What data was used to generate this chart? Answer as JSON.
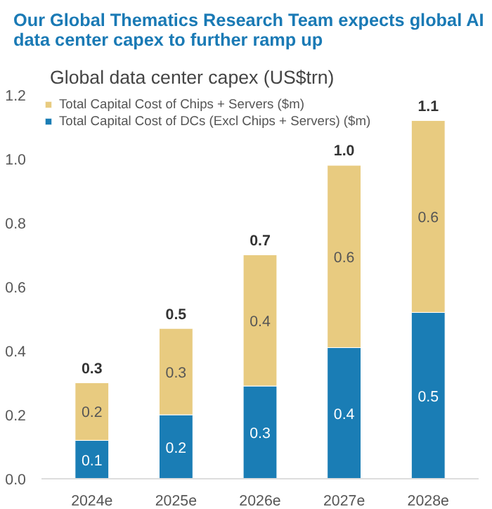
{
  "chart_data": {
    "type": "bar",
    "stacked": true,
    "title": "Our Global Thematics Research Team expects global AI data center capex to further ramp up",
    "subtitle": "Global data center capex (US$trn)",
    "categories": [
      "2024e",
      "2025e",
      "2026e",
      "2027e",
      "2028e"
    ],
    "series": [
      {
        "name": "Total Capital Cost of DCs (Excl Chips + Servers) ($m)",
        "color": "#1a7db5",
        "values": [
          0.12,
          0.2,
          0.29,
          0.41,
          0.52
        ],
        "value_labels": [
          "0.1",
          "0.2",
          "0.3",
          "0.4",
          "0.5"
        ]
      },
      {
        "name": "Total Capital Cost of Chips + Servers ($m)",
        "color": "#e8cb80",
        "values": [
          0.18,
          0.27,
          0.41,
          0.57,
          0.6
        ],
        "value_labels": [
          "0.2",
          "0.3",
          "0.4",
          "0.6",
          "0.6"
        ]
      }
    ],
    "totals": [
      "0.3",
      "0.5",
      "0.7",
      "1.0",
      "1.1"
    ],
    "ylim": [
      0,
      1.2
    ],
    "yticks": [
      {
        "value": 0,
        "label": "0.0"
      },
      0.2,
      0.4,
      0.6,
      0.8,
      {
        "value": 1,
        "label": "1.0"
      },
      1.2
    ],
    "grid": false,
    "legend": "top left"
  }
}
